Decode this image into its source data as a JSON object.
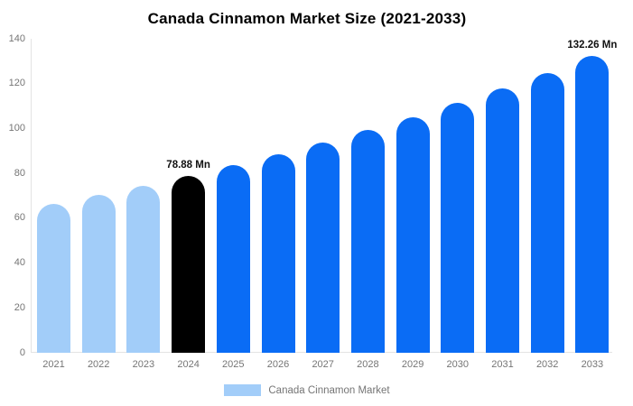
{
  "chart_data": {
    "type": "bar",
    "title": "Canada Cinnamon Market Size (2021-2033)",
    "categories": [
      "2021",
      "2022",
      "2023",
      "2024",
      "2025",
      "2026",
      "2027",
      "2028",
      "2029",
      "2030",
      "2031",
      "2032",
      "2033"
    ],
    "values": [
      66.4,
      70.3,
      74.4,
      78.88,
      83.6,
      88.5,
      93.7,
      99.3,
      105.1,
      111.3,
      117.9,
      124.9,
      132.26
    ],
    "unit": "Mn",
    "bar_colors": [
      "#a2cdf9",
      "#a2cdf9",
      "#a2cdf9",
      "#000000",
      "#0a6cf5",
      "#0a6cf5",
      "#0a6cf5",
      "#0a6cf5",
      "#0a6cf5",
      "#0a6cf5",
      "#0a6cf5",
      "#0a6cf5",
      "#0a6cf5"
    ],
    "xlabel": "",
    "ylabel": "",
    "ylim": [
      0,
      140
    ],
    "yticks": [
      0,
      20,
      40,
      60,
      80,
      100,
      120,
      140
    ],
    "grid": false,
    "legend_position": "bottom",
    "legend": {
      "items": [
        {
          "label": "Canada Cinnamon Market",
          "color": "#a2cdf9"
        }
      ]
    },
    "annotations": [
      {
        "index": 3,
        "text": "78.88 Mn"
      },
      {
        "index": 12,
        "text": "132.26 Mn"
      }
    ]
  },
  "colors": {
    "past_bar": "#a2cdf9",
    "highlight_bar": "#000000",
    "forecast_bar": "#0a6cf5",
    "axis_line": "#e3e3e3",
    "tick_text": "#757575",
    "title_text": "#000000",
    "annotation_text": "#111111"
  }
}
